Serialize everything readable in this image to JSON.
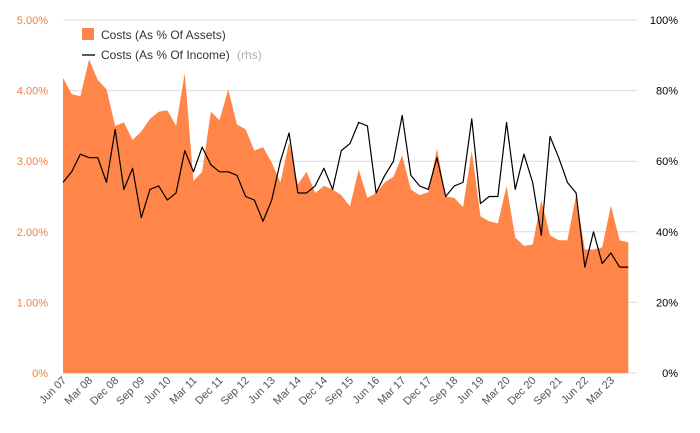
{
  "chart_data": {
    "type": "area",
    "title": "",
    "xlabel": "",
    "ylabel_left": "",
    "ylabel_right": "",
    "grid": true,
    "legend_position": "top-left",
    "ylim_left": [
      0,
      5
    ],
    "ylim_right": [
      0,
      100
    ],
    "y_ticks_left": [
      "0%",
      "1.00%",
      "2.00%",
      "3.00%",
      "4.00%",
      "5.00%"
    ],
    "y_ticks_right": [
      "0%",
      "20%",
      "40%",
      "60%",
      "80%",
      "100%"
    ],
    "x_ticks": [
      "Jun 07",
      "Mar 08",
      "Dec 08",
      "Sep 09",
      "Jun 10",
      "Mar 11",
      "Dec 11",
      "Sep 12",
      "Jun 13",
      "Mar 14",
      "Dec 14",
      "Sep 15",
      "Jun 16",
      "Mar 17",
      "Dec 17",
      "Sep 18",
      "Jun 19",
      "Mar 20",
      "Dec 20",
      "Sep 21",
      "Jun 22",
      "Mar 23"
    ],
    "x_start_year": 2007,
    "x_start_quarter": 2,
    "x_end_year": 2023,
    "x_end_quarter": 4,
    "colors": {
      "assets": "#ff8548",
      "income": "#000000",
      "left_axis": "#f07f3c",
      "right_axis": "#000000",
      "grid": "#dcdcdc"
    },
    "series": [
      {
        "name": "Costs (As % Of Assets)",
        "type": "area",
        "axis": "left",
        "values": [
          4.18,
          3.95,
          3.92,
          4.44,
          4.15,
          4.02,
          3.5,
          3.55,
          3.3,
          3.42,
          3.6,
          3.7,
          3.72,
          3.5,
          4.25,
          2.72,
          2.85,
          3.7,
          3.58,
          4.02,
          3.52,
          3.45,
          3.15,
          3.2,
          2.98,
          2.7,
          3.27,
          2.67,
          2.85,
          2.55,
          2.65,
          2.6,
          2.52,
          2.36,
          2.88,
          2.48,
          2.55,
          2.7,
          2.78,
          3.08,
          2.6,
          2.52,
          2.56,
          3.18,
          2.5,
          2.48,
          2.35,
          3.15,
          2.22,
          2.15,
          2.12,
          2.65,
          1.92,
          1.8,
          1.82,
          2.45,
          1.95,
          1.88,
          1.88,
          2.52,
          1.75,
          1.75,
          1.78,
          2.37,
          1.88,
          1.85
        ]
      },
      {
        "name": "Costs (As % Of Income)",
        "name_suffix": "(rhs)",
        "type": "line",
        "axis": "right",
        "values": [
          54,
          57,
          62,
          61,
          61,
          54,
          69,
          52,
          58,
          44,
          52,
          53,
          49,
          51,
          63,
          57,
          64,
          59,
          57,
          57,
          56,
          50,
          49,
          43,
          49,
          60,
          68,
          51,
          51,
          53,
          58,
          52,
          63,
          65,
          71,
          70,
          51,
          56,
          60,
          73,
          56,
          53,
          52,
          61,
          50,
          53,
          54,
          72,
          48,
          50,
          50,
          71,
          52,
          62,
          54,
          39,
          67,
          61,
          54,
          51,
          30,
          40,
          31,
          34,
          30,
          30
        ]
      }
    ]
  }
}
